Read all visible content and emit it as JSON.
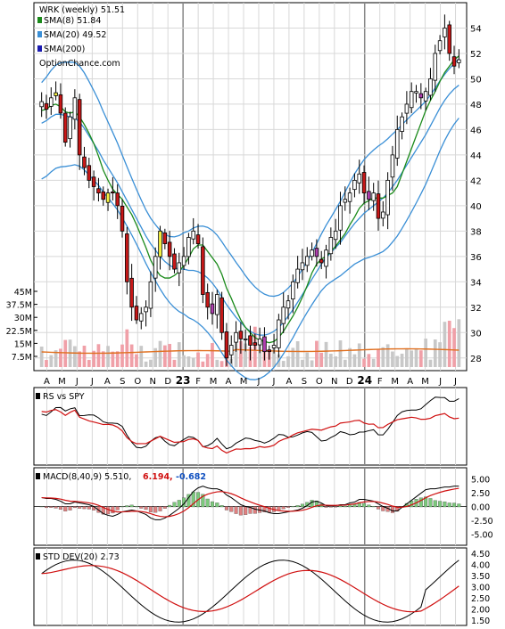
{
  "chart_data": [
    {
      "type": "candlestick",
      "title": "WRK (weekly) 51.51",
      "attribution": "OptionChance.com",
      "legend": [
        {
          "label": "SMA(8) 51.84",
          "color": "#1a8a1a"
        },
        {
          "label": "SMA(20) 49.52",
          "color": "#3a8fd6"
        },
        {
          "label": "SMA(200)",
          "color": "#1a1ab0"
        }
      ],
      "legend_placement": "top-left",
      "ylim": [
        27,
        56
      ],
      "yticks": [
        28,
        30,
        32,
        34,
        36,
        38,
        40,
        42,
        44,
        46,
        48,
        50,
        52,
        54
      ],
      "xticks": [
        "A",
        "M",
        "J",
        "J",
        "A",
        "S",
        "O",
        "N",
        "D",
        "23",
        "F",
        "M",
        "A",
        "M",
        "J",
        "J",
        "A",
        "S",
        "O",
        "N",
        "D",
        "24",
        "F",
        "M",
        "A",
        "M",
        "J",
        "J"
      ],
      "close": [
        48.2,
        47.6,
        48.5,
        48.9,
        47.3,
        45.0,
        47.0,
        48.5,
        44.0,
        43.0,
        42.0,
        41.5,
        41.0,
        40.5,
        41.0,
        41.0,
        40.0,
        38.0,
        34.0,
        32.0,
        31.0,
        31.5,
        32.0,
        34.0,
        36.0,
        38.0,
        37.0,
        36.0,
        35.0,
        35.5,
        36.0,
        37.5,
        38.0,
        37.0,
        33.0,
        32.0,
        31.5,
        33.0,
        30.0,
        28.0,
        29.0,
        30.0,
        29.5,
        29.5,
        29.0,
        29.0,
        29.5,
        28.5,
        28.5,
        29.0,
        31.0,
        32.0,
        32.5,
        34.0,
        35.0,
        35.5,
        36.0,
        36.5,
        36.0,
        35.5,
        36.5,
        37.5,
        38.0,
        40.0,
        40.5,
        41.0,
        42.0,
        42.5,
        41.0,
        40.5,
        41.0,
        39.0,
        39.5,
        42.0,
        44.0,
        46.0,
        47.0,
        48.0,
        49.0,
        49.0,
        48.5,
        49.0,
        50.0,
        52.0,
        53.0,
        54.0,
        52.0,
        51.0,
        51.5
      ],
      "sma8": [
        47.5,
        47.6,
        47.9,
        48.0,
        47.8,
        47.4,
        47.3,
        47.4,
        47.0,
        46.4,
        45.7,
        44.9,
        43.9,
        42.8,
        42.0,
        41.3,
        40.9,
        40.5,
        39.9,
        39.3,
        38.5,
        37.6,
        36.7,
        35.7,
        35.0,
        34.5,
        34.3,
        34.3,
        34.5,
        34.8,
        35.3,
        35.9,
        36.6,
        36.9,
        36.9,
        36.4,
        35.9,
        35.4,
        34.6,
        33.5,
        32.7,
        31.8,
        31.0,
        30.4,
        30.0,
        29.6,
        29.4,
        29.3,
        29.2,
        29.3,
        29.6,
        30.1,
        30.7,
        31.3,
        32.0,
        32.8,
        33.7,
        34.7,
        35.4,
        35.8,
        36.0,
        36.4,
        36.8,
        37.3,
        37.8,
        38.5,
        39.1,
        39.8,
        40.2,
        40.4,
        40.6,
        40.6,
        40.6,
        40.8,
        41.0,
        41.5,
        42.5,
        43.5,
        44.5,
        45.5,
        46.5,
        47.5,
        48.3,
        49.0,
        49.8,
        50.5,
        51.0,
        51.5,
        51.8
      ],
      "sma20": [
        46.5,
        46.7,
        47.0,
        47.2,
        47.2,
        47.1,
        47.0,
        46.9,
        46.6,
        46.1,
        45.5,
        44.9,
        44.3,
        43.6,
        43.0,
        42.4,
        41.8,
        41.1,
        40.4,
        39.7,
        39.0,
        38.3,
        37.6,
        37.0,
        36.5,
        36.0,
        35.6,
        35.3,
        35.1,
        35.0,
        35.0,
        34.9,
        34.9,
        34.8,
        34.6,
        34.3,
        33.9,
        33.4,
        32.8,
        32.2,
        31.7,
        31.2,
        30.8,
        30.4,
        30.1,
        29.9,
        29.8,
        29.8,
        29.9,
        30.1,
        30.4,
        30.8,
        31.3,
        31.8,
        32.4,
        33.0,
        33.6,
        34.2,
        34.8,
        35.4,
        35.9,
        36.3,
        36.7,
        37.1,
        37.6,
        38.1,
        38.6,
        39.0,
        39.4,
        39.7,
        40.0,
        40.3,
        40.6,
        41.0,
        41.5,
        42.0,
        42.6,
        43.2,
        43.8,
        44.4,
        45.0,
        45.6,
        46.3,
        47.0,
        47.7,
        48.3,
        48.8,
        49.2,
        49.5
      ],
      "volume_axis": {
        "ticks": [
          "7.5M",
          "15M",
          "22.5M",
          "30M",
          "37.5M",
          "45M"
        ],
        "max": 45
      }
    },
    {
      "type": "line",
      "title": "RS vs SPY",
      "ylim": [
        0,
        1
      ]
    },
    {
      "type": "line",
      "title": "MACD(8,40,9) 5.510,",
      "macd_value": "6.194,",
      "signal_value": "-0.682",
      "macd_color": "#d01010",
      "signal_color": "#1050c0",
      "yticks": [
        "5.00",
        "2.50",
        "0.00",
        "-2.50",
        "-5.00"
      ],
      "ylim": [
        -7,
        7
      ]
    },
    {
      "type": "line",
      "title": "STD DEV(20) 2.73",
      "yticks": [
        "1.50",
        "2.00",
        "2.50",
        "3.00",
        "3.50",
        "4.00",
        "4.50"
      ],
      "ylim": [
        1.25,
        4.75
      ]
    }
  ]
}
